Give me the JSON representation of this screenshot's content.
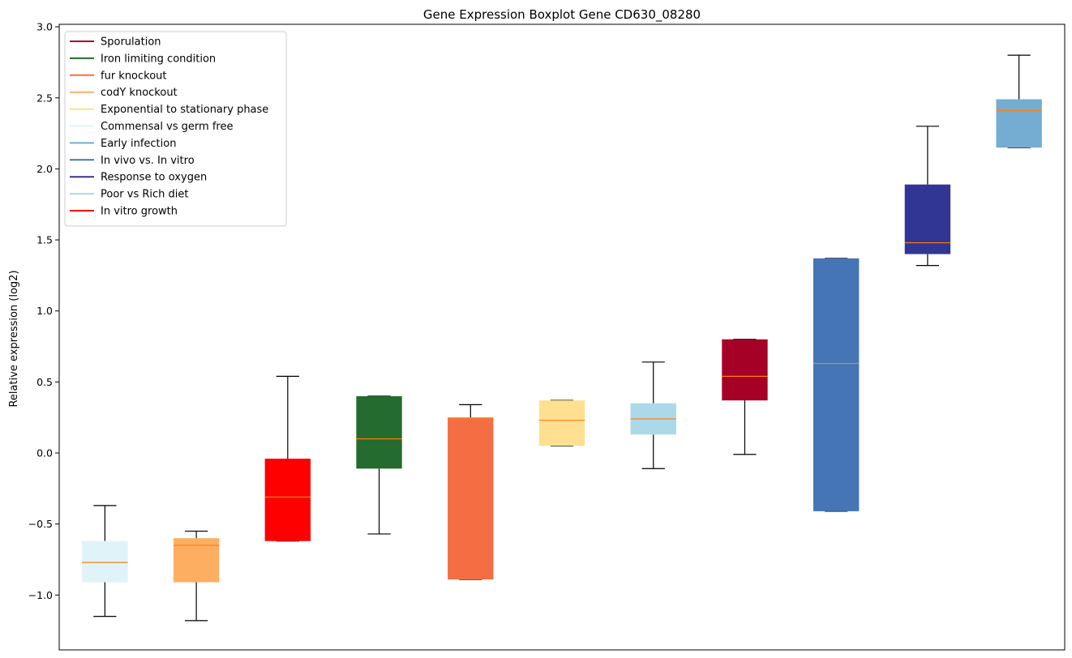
{
  "chart_data": {
    "type": "boxplot",
    "title": "Gene Expression Boxplot Gene CD630_08280",
    "xlabel": "",
    "ylabel": "Relative expression (log2)",
    "ylim": [
      -1.35,
      3.0
    ],
    "yticks": [
      -1.0,
      -0.5,
      0.0,
      0.5,
      1.0,
      1.5,
      2.0,
      2.5,
      3.0
    ],
    "ytick_labels": [
      "−1.0",
      "−0.5",
      "0.0",
      "0.5",
      "1.0",
      "1.5",
      "2.0",
      "2.5",
      "3.0"
    ],
    "median_color": "#ff7f0e",
    "whisker_color": "#000000",
    "legend_position": "top-left",
    "legend": [
      {
        "label": "Sporulation",
        "color": "#a50026"
      },
      {
        "label": "Iron limiting condition",
        "color": "#236b2e"
      },
      {
        "label": "fur knockout",
        "color": "#f46d43"
      },
      {
        "label": "codY knockout",
        "color": "#fdae61"
      },
      {
        "label": "Exponential to stationary phase",
        "color": "#fee090"
      },
      {
        "label": "Commensal vs germ free",
        "color": "#e0f3f8"
      },
      {
        "label": "Early infection",
        "color": "#74add1"
      },
      {
        "label": "In vivo vs. In vitro",
        "color": "#4575b4"
      },
      {
        "label": "Response to oxygen",
        "color": "#313695"
      },
      {
        "label": "Poor vs Rich diet",
        "color": "#abd9e9"
      },
      {
        "label": "In vitro growth",
        "color": "#ff0000"
      }
    ],
    "boxes": [
      {
        "group": "Commensal vs germ free",
        "color": "#e0f3f8",
        "whisker_low": -1.15,
        "q1": -0.91,
        "median": -0.77,
        "q3": -0.62,
        "whisker_high": -0.37
      },
      {
        "group": "codY knockout",
        "color": "#fdae61",
        "whisker_low": -1.18,
        "q1": -0.91,
        "median": -0.65,
        "q3": -0.6,
        "whisker_high": -0.55
      },
      {
        "group": "In vitro growth",
        "color": "#ff0000",
        "whisker_low": -0.62,
        "q1": -0.62,
        "median": -0.31,
        "q3": -0.04,
        "whisker_high": 0.54
      },
      {
        "group": "Iron limiting condition",
        "color": "#236b2e",
        "whisker_low": -0.57,
        "q1": -0.11,
        "median": 0.1,
        "q3": 0.4,
        "whisker_high": 0.4
      },
      {
        "group": "fur knockout",
        "color": "#f46d43",
        "whisker_low": -0.89,
        "q1": -0.89,
        "median": 0.24,
        "q3": 0.25,
        "whisker_high": 0.34
      },
      {
        "group": "Exponential to stationary phase",
        "color": "#fee090",
        "whisker_low": 0.05,
        "q1": 0.05,
        "median": 0.23,
        "q3": 0.37,
        "whisker_high": 0.37
      },
      {
        "group": "Poor vs Rich diet",
        "color": "#abd9e9",
        "whisker_low": -0.11,
        "q1": 0.13,
        "median": 0.24,
        "q3": 0.35,
        "whisker_high": 0.64
      },
      {
        "group": "Sporulation",
        "color": "#a50026",
        "whisker_low": -0.01,
        "q1": 0.37,
        "median": 0.54,
        "q3": 0.8,
        "whisker_high": 0.8
      },
      {
        "group": "In vivo vs. In vitro",
        "color": "#4575b4",
        "whisker_low": -0.41,
        "q1": -0.41,
        "median": 0.63,
        "q3": 1.37,
        "whisker_high": 1.37
      },
      {
        "group": "Response to oxygen",
        "color": "#313695",
        "whisker_low": 1.32,
        "q1": 1.4,
        "median": 1.48,
        "q3": 1.89,
        "whisker_high": 2.3
      },
      {
        "group": "Early infection",
        "color": "#74add1",
        "whisker_low": 2.15,
        "q1": 2.15,
        "median": 2.41,
        "q3": 2.49,
        "whisker_high": 2.8
      }
    ]
  }
}
